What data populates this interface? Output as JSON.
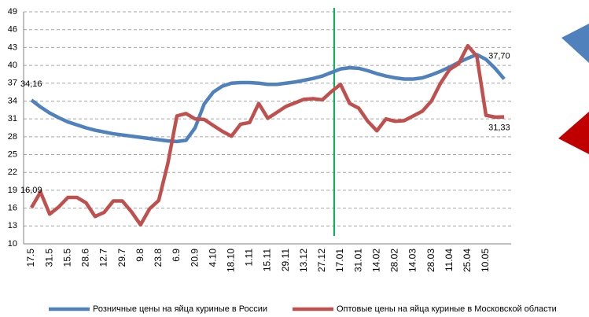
{
  "chart_data": {
    "type": "line",
    "categories": [
      "17.5",
      null,
      "31.5",
      null,
      "15.5",
      null,
      "28.6",
      null,
      "12.7",
      null,
      "29.7",
      null,
      "9.8",
      null,
      "23.8",
      null,
      "6.9",
      null,
      "20.9",
      null,
      "4.10",
      null,
      "18.10",
      null,
      "1.11",
      null,
      "15.11",
      null,
      "29.11",
      null,
      "13.12",
      null,
      "27.12",
      null,
      "17.01",
      null,
      "31.01",
      null,
      "14.02",
      null,
      "28.02",
      null,
      "14.03",
      null,
      "28.03",
      null,
      "11.04",
      null,
      "25.04",
      null,
      "10.05",
      null,
      null
    ],
    "series": [
      {
        "name": "Розничные цены на яйца куриные в России",
        "color": "#4f81bd",
        "values": [
          34.16,
          33.0,
          32.0,
          31.2,
          30.5,
          30.0,
          29.5,
          29.1,
          28.8,
          28.5,
          28.3,
          28.1,
          27.9,
          27.7,
          27.5,
          27.3,
          27.2,
          27.4,
          29.5,
          33.5,
          35.5,
          36.5,
          37.0,
          37.1,
          37.1,
          37.0,
          36.8,
          36.8,
          37.0,
          37.2,
          37.5,
          37.8,
          38.2,
          38.8,
          39.4,
          39.6,
          39.5,
          39.1,
          38.6,
          38.2,
          37.9,
          37.7,
          37.7,
          37.9,
          38.4,
          39.0,
          39.7,
          40.5,
          41.2,
          41.8,
          41.0,
          39.5,
          37.7
        ],
        "value_labels": [
          "34,16",
          null,
          null,
          null,
          null,
          null,
          null,
          null,
          null,
          null,
          null,
          null,
          null,
          null,
          null,
          null,
          null,
          null,
          null,
          null,
          null,
          null,
          null,
          null,
          null,
          null,
          null,
          null,
          null,
          null,
          null,
          null,
          null,
          null,
          null,
          null,
          null,
          null,
          null,
          null,
          null,
          null,
          null,
          null,
          null,
          null,
          null,
          null,
          null,
          null,
          null,
          null,
          "37,70"
        ]
      },
      {
        "name": "Оптовые цены на яйца куриные в Московской области",
        "color": "#c0504d",
        "values": [
          16.09,
          18.7,
          15.0,
          16.2,
          17.8,
          17.8,
          16.9,
          14.6,
          15.3,
          17.2,
          17.2,
          15.4,
          13.2,
          15.9,
          17.3,
          23.5,
          31.5,
          31.9,
          31.0,
          30.9,
          29.9,
          28.9,
          28.1,
          30.1,
          30.4,
          33.6,
          31.1,
          32.1,
          33.1,
          33.7,
          34.3,
          34.4,
          34.2,
          35.6,
          36.8,
          33.6,
          32.8,
          30.6,
          29.0,
          31.0,
          30.6,
          30.7,
          31.5,
          32.3,
          34.0,
          37.0,
          39.3,
          40.3,
          43.3,
          41.5,
          31.6,
          31.3,
          31.33
        ],
        "value_labels": [
          "16,09",
          null,
          null,
          null,
          null,
          null,
          null,
          null,
          null,
          null,
          null,
          null,
          null,
          null,
          null,
          null,
          null,
          null,
          null,
          null,
          null,
          null,
          null,
          null,
          null,
          null,
          null,
          null,
          null,
          null,
          null,
          null,
          null,
          null,
          null,
          null,
          null,
          null,
          null,
          null,
          null,
          null,
          null,
          null,
          null,
          null,
          null,
          null,
          null,
          null,
          null,
          null,
          "31,33"
        ]
      }
    ],
    "ylim": [
      10,
      49
    ],
    "yticks": [
      10,
      13,
      16,
      19,
      22,
      25,
      28,
      31,
      34,
      37,
      40,
      43,
      46,
      49
    ],
    "grid": true,
    "legend": "bottom",
    "vertical_line": {
      "index": 33.3,
      "color": "#00b050"
    }
  }
}
